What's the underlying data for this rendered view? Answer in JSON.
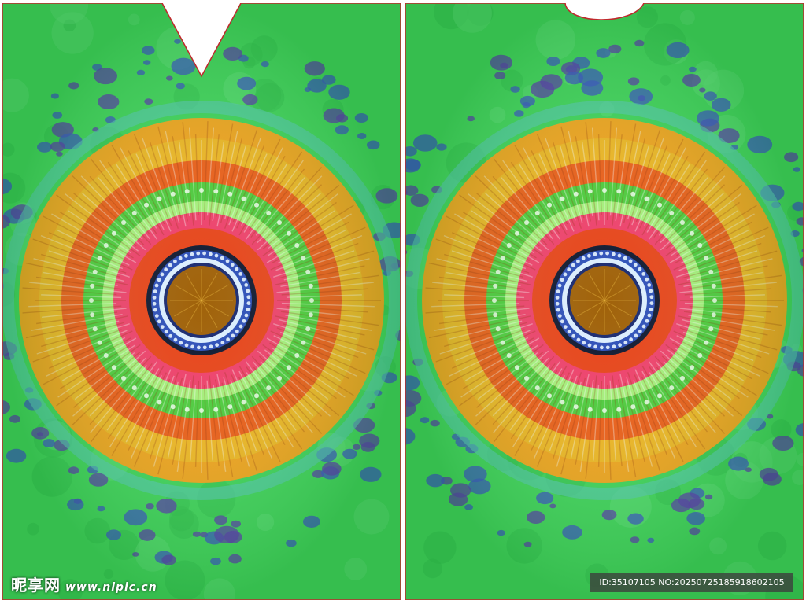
{
  "panels": [
    {
      "id": "front",
      "neckline": "v-neck"
    },
    {
      "id": "back",
      "neckline": "scoop-neck"
    }
  ],
  "pattern": {
    "name": "tie-dye-spiral",
    "colors": {
      "background": "#3fd45a",
      "blotch": "#3a4fc8",
      "outer_ring": "#f7a21a",
      "orange_ring": "#f05a14",
      "green_ring": "#4ccb3a",
      "pink_ring": "#f03e6a",
      "red_ring": "#e84318",
      "blue_ring": "#2d4fb8",
      "center": "#a0620a",
      "outline": "#c0282c"
    }
  },
  "watermarks": {
    "left_logo": "昵享网",
    "left_url": "www.nipic.cn",
    "right_id": "ID:35107105 NO:20250725185918602105"
  }
}
